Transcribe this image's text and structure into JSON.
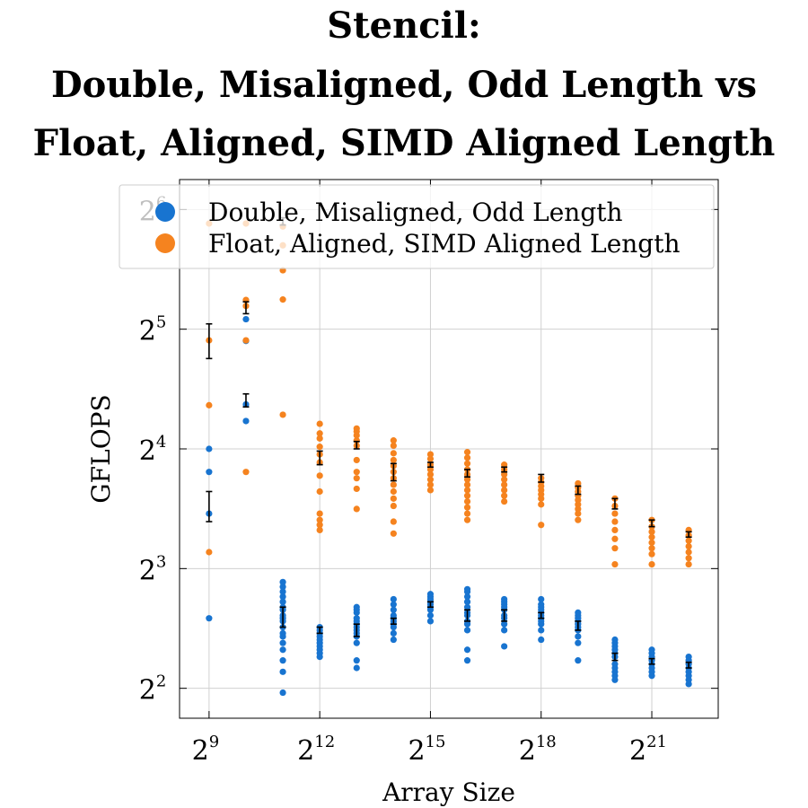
{
  "chart_data": {
    "type": "scatter",
    "title_lines": [
      "Stencil:",
      "Double, Misaligned, Odd Length vs",
      "Float, Aligned, SIMD Aligned Length"
    ],
    "xlabel": "Array Size",
    "ylabel": "GFLOPS",
    "x_scale": "log2",
    "y_scale": "log2",
    "xlim_log2": [
      8.2,
      22.8
    ],
    "ylim_log2": [
      1.75,
      6.25
    ],
    "x_ticks": [
      {
        "base": "2",
        "exp": "9",
        "log2": 9
      },
      {
        "base": "2",
        "exp": "12",
        "log2": 12
      },
      {
        "base": "2",
        "exp": "15",
        "log2": 15
      },
      {
        "base": "2",
        "exp": "18",
        "log2": 18
      },
      {
        "base": "2",
        "exp": "21",
        "log2": 21
      }
    ],
    "y_ticks": [
      {
        "base": "2",
        "exp": "2",
        "log2": 2
      },
      {
        "base": "2",
        "exp": "3",
        "log2": 3
      },
      {
        "base": "2",
        "exp": "4",
        "log2": 4
      },
      {
        "base": "2",
        "exp": "5",
        "log2": 5
      },
      {
        "base": "2",
        "exp": "6",
        "log2": 6
      }
    ],
    "grid": true,
    "legend_position": "top",
    "series": [
      {
        "name": "Double, Misaligned, Odd Length",
        "color": "#1874d0",
        "points": [
          {
            "x_log2": 9,
            "values": [
              6.0,
              11.0,
              14.0,
              16.0
            ]
          },
          {
            "x_log2": 10,
            "values": [
              18.8,
              20.7,
              29.9,
              33.9
            ]
          },
          {
            "x_log2": 11,
            "values": [
              3.9,
              4.4,
              4.7,
              5.0,
              5.2,
              5.4,
              5.5,
              5.7,
              5.9,
              6.0,
              6.1,
              6.3,
              6.4,
              6.6,
              6.8,
              7.0,
              7.2,
              7.4
            ]
          },
          {
            "x_log2": 12,
            "values": [
              4.8,
              4.9,
              5.0,
              5.1,
              5.2,
              5.3,
              5.4,
              5.5,
              5.6,
              5.7
            ]
          },
          {
            "x_log2": 13,
            "values": [
              4.5,
              4.7,
              5.2,
              5.4,
              5.5,
              5.6,
              5.7,
              5.8,
              5.9,
              6.0,
              6.2,
              6.3,
              6.4
            ]
          },
          {
            "x_log2": 14,
            "values": [
              5.3,
              5.5,
              5.7,
              5.8,
              5.9,
              6.0,
              6.1,
              6.3,
              6.5,
              6.7
            ]
          },
          {
            "x_log2": 15,
            "values": [
              5.9,
              6.1,
              6.3,
              6.4,
              6.5,
              6.6,
              6.7,
              6.8,
              6.9
            ]
          },
          {
            "x_log2": 16,
            "values": [
              4.7,
              5.0,
              5.6,
              5.8,
              5.9,
              6.1,
              6.2,
              6.4,
              6.6,
              6.8,
              7.0,
              7.1
            ]
          },
          {
            "x_log2": 17,
            "values": [
              5.1,
              5.6,
              5.8,
              6.0,
              6.1,
              6.3,
              6.4,
              6.5,
              6.6,
              6.7
            ]
          },
          {
            "x_log2": 18,
            "values": [
              5.3,
              5.6,
              5.8,
              5.9,
              6.0,
              6.1,
              6.2,
              6.3,
              6.4,
              6.5,
              6.7
            ]
          },
          {
            "x_log2": 19,
            "values": [
              4.7,
              5.2,
              5.4,
              5.6,
              5.7,
              5.8,
              5.9,
              6.0,
              6.1,
              6.2
            ]
          },
          {
            "x_log2": 20,
            "values": [
              4.2,
              4.3,
              4.4,
              4.5,
              4.6,
              4.8,
              4.9,
              5.0,
              5.1,
              5.2,
              5.3
            ]
          },
          {
            "x_log2": 21,
            "values": [
              4.3,
              4.4,
              4.5,
              4.6,
              4.7,
              4.8,
              4.9,
              5.0
            ]
          },
          {
            "x_log2": 22,
            "values": [
              4.1,
              4.2,
              4.3,
              4.4,
              4.5,
              4.6,
              4.7,
              4.8
            ]
          }
        ]
      },
      {
        "name": "Float, Aligned, SIMD Aligned Length",
        "color": "#f5831f",
        "points": [
          {
            "x_log2": 9,
            "values": [
              8.8,
              20.6,
              30.0,
              59.0
            ]
          },
          {
            "x_log2": 10,
            "values": [
              14.0,
              30.0,
              36.6,
              37.9,
              59.0
            ]
          },
          {
            "x_log2": 11,
            "values": [
              19.5,
              38.0,
              45.0,
              52.0,
              58.0
            ]
          },
          {
            "x_log2": 12,
            "values": [
              10.0,
              10.3,
              10.6,
              11.0,
              12.5,
              13.7,
              14.8,
              15.5,
              16.2,
              17.0,
              17.5,
              18.5
            ]
          },
          {
            "x_log2": 13,
            "values": [
              11.3,
              12.7,
              13.5,
              14.0,
              15.0,
              16.3,
              16.8,
              17.3,
              17.7,
              18.0
            ]
          },
          {
            "x_log2": 14,
            "values": [
              9.8,
              10.5,
              11.5,
              12.0,
              12.5,
              13.0,
              13.5,
              14.0,
              14.5,
              15.0,
              15.6,
              16.3,
              16.8
            ]
          },
          {
            "x_log2": 15,
            "values": [
              12.6,
              13.0,
              13.4,
              13.8,
              14.2,
              14.6,
              15.1,
              15.5
            ]
          },
          {
            "x_log2": 16,
            "values": [
              10.6,
              11.0,
              11.4,
              11.8,
              12.2,
              12.6,
              13.0,
              13.4,
              13.8,
              14.2,
              14.7,
              15.2,
              15.7
            ]
          },
          {
            "x_log2": 17,
            "values": [
              11.8,
              12.2,
              12.6,
              13.0,
              13.4,
              13.8,
              14.2,
              14.6
            ]
          },
          {
            "x_log2": 18,
            "values": [
              10.3,
              11.6,
              12.0,
              12.3,
              12.6,
              12.9,
              13.2,
              13.5
            ]
          },
          {
            "x_log2": 19,
            "values": [
              10.6,
              11.0,
              11.3,
              11.6,
              11.9,
              12.2,
              12.5,
              12.8,
              13.1
            ]
          },
          {
            "x_log2": 20,
            "values": [
              8.2,
              9.0,
              9.5,
              10.0,
              10.5,
              11.0,
              11.5,
              12.0
            ]
          },
          {
            "x_log2": 21,
            "values": [
              8.2,
              8.7,
              9.0,
              9.3,
              9.6,
              9.9,
              10.2,
              10.6
            ]
          },
          {
            "x_log2": 22,
            "values": [
              8.2,
              8.5,
              8.8,
              9.1,
              9.4,
              9.7,
              10.0
            ]
          }
        ]
      }
    ],
    "error_bars": [
      {
        "x_log2": 9,
        "low": 27.0,
        "high": 33.0
      },
      {
        "x_log2": 10,
        "low": 35.0,
        "high": 37.5
      },
      {
        "x_log2": 11,
        "low": 58.5,
        "high": 61.0
      },
      {
        "x_log2": 12,
        "low": 14.6,
        "high": 15.8
      },
      {
        "x_log2": 13,
        "low": 16.0,
        "high": 16.7
      },
      {
        "x_log2": 14,
        "low": 13.3,
        "high": 14.7
      },
      {
        "x_log2": 15,
        "low": 14.4,
        "high": 14.8
      },
      {
        "x_log2": 16,
        "low": 13.6,
        "high": 14.2
      },
      {
        "x_log2": 17,
        "low": 14.0,
        "high": 14.4
      },
      {
        "x_log2": 18,
        "low": 13.2,
        "high": 13.8
      },
      {
        "x_log2": 19,
        "low": 12.3,
        "high": 12.9
      },
      {
        "x_log2": 20,
        "low": 11.3,
        "high": 12.0
      },
      {
        "x_log2": 21,
        "low": 10.2,
        "high": 10.6
      },
      {
        "x_log2": 22,
        "low": 9.6,
        "high": 9.9
      },
      {
        "x_log2": 9,
        "low": 10.5,
        "high": 12.5
      },
      {
        "x_log2": 10,
        "low": 20.4,
        "high": 22.0
      },
      {
        "x_log2": 11,
        "low": 5.7,
        "high": 6.4
      },
      {
        "x_log2": 12,
        "low": 5.5,
        "high": 5.7
      },
      {
        "x_log2": 13,
        "low": 5.4,
        "high": 5.8
      },
      {
        "x_log2": 14,
        "low": 5.8,
        "high": 6.0
      },
      {
        "x_log2": 15,
        "low": 6.4,
        "high": 6.6
      },
      {
        "x_log2": 16,
        "low": 5.9,
        "high": 6.3
      },
      {
        "x_log2": 17,
        "low": 5.9,
        "high": 6.3
      },
      {
        "x_log2": 18,
        "low": 6.0,
        "high": 6.2
      },
      {
        "x_log2": 19,
        "low": 5.6,
        "high": 5.9
      },
      {
        "x_log2": 20,
        "low": 4.7,
        "high": 4.9
      },
      {
        "x_log2": 21,
        "low": 4.6,
        "high": 4.75
      },
      {
        "x_log2": 22,
        "low": 4.5,
        "high": 4.65
      }
    ]
  }
}
